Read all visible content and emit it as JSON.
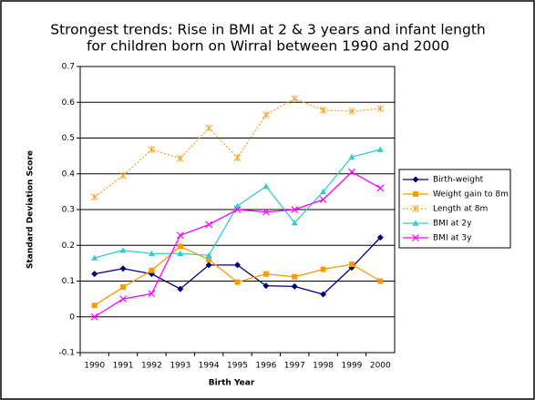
{
  "chart_data": {
    "type": "line",
    "title": [
      "Strongest trends: Rise in BMI at 2 & 3 years and infant length",
      "for children born on Wirral between 1990 and 2000"
    ],
    "xlabel": "Birth Year",
    "ylabel": "Standard Deviation Score",
    "categories": [
      "1990",
      "1991",
      "1992",
      "1993",
      "1994",
      "1995",
      "1996",
      "1997",
      "1998",
      "1999",
      "2000"
    ],
    "series": [
      {
        "name": "Birth-weight",
        "color": "#000080",
        "marker": "diamond",
        "dashed": false,
        "values": [
          0.12,
          0.135,
          0.12,
          0.078,
          0.145,
          0.145,
          0.087,
          0.085,
          0.063,
          0.138,
          0.222
        ]
      },
      {
        "name": "Weight gain to 8m",
        "color": "#ff9900",
        "marker": "square",
        "dashed": false,
        "values": [
          0.032,
          0.083,
          0.13,
          0.197,
          0.16,
          0.097,
          0.12,
          0.112,
          0.133,
          0.147,
          0.1
        ]
      },
      {
        "name": "Length at 8m",
        "color": "#f5a623",
        "marker": "asterisk",
        "dashed": true,
        "values": [
          0.335,
          0.395,
          0.468,
          0.443,
          0.528,
          0.445,
          0.565,
          0.61,
          0.578,
          0.575,
          0.582
        ]
      },
      {
        "name": "BMI at 2y",
        "color": "#33cccc",
        "marker": "triangle",
        "dashed": false,
        "values": [
          0.165,
          0.186,
          0.177,
          0.177,
          0.172,
          0.31,
          0.365,
          0.263,
          0.35,
          0.447,
          0.468
        ]
      },
      {
        "name": "BMI at 3y",
        "color": "#ff00ff",
        "marker": "x",
        "dashed": false,
        "values": [
          0,
          0.05,
          0.065,
          0.228,
          0.258,
          0.3,
          0.293,
          0.3,
          0.328,
          0.405,
          0.36
        ]
      }
    ],
    "ylim": [
      -0.1,
      0.7
    ],
    "yticks": [
      -0.1,
      0,
      0.1,
      0.2,
      0.3,
      0.4,
      0.5,
      0.6,
      0.7
    ],
    "grid": true,
    "legend": "right"
  }
}
